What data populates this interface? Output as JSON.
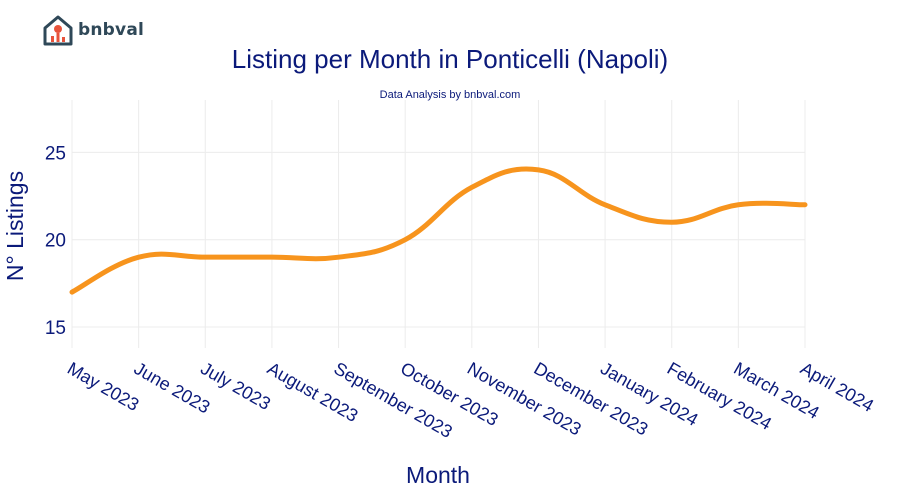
{
  "brand": {
    "name": "bnbval"
  },
  "chart_data": {
    "type": "line",
    "title": "Listing per Month in Ponticelli (Napoli)",
    "subtitle": "Data Analysis by bnbval.com",
    "xlabel": "Month",
    "ylabel": "N° Listings",
    "categories": [
      "May 2023",
      "June 2023",
      "July 2023",
      "August 2023",
      "September 2023",
      "October 2023",
      "November 2023",
      "December 2023",
      "January 2024",
      "February 2024",
      "March 2024",
      "April 2024"
    ],
    "series": [
      {
        "values": [
          17,
          19,
          19,
          19,
          19,
          20,
          23,
          24,
          22,
          21,
          22,
          22
        ]
      }
    ],
    "ylim": [
      13.8,
      28
    ],
    "yticks": [
      15,
      20,
      25
    ],
    "grid": true,
    "line_color": "#f7941d",
    "text_color": "#0b1a7a"
  }
}
